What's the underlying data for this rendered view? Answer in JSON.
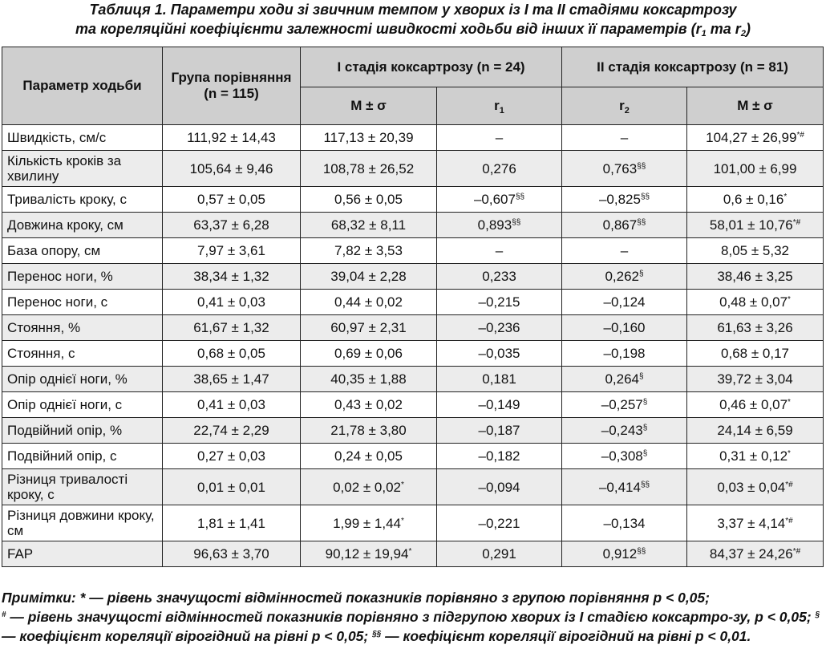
{
  "caption": {
    "line1": "Таблиця 1. Параметри ходи зі звичним темпом у хворих із I та II стадіями коксартрозу",
    "line2_prefix": "та кореляційні коефіцієнти залежності швидкості ходьби від інших її параметрів (r",
    "line2_sub1": "1",
    "line2_mid": " та r",
    "line2_sub2": "2",
    "line2_suffix": ")"
  },
  "table": {
    "head": {
      "param": "Параметр ходьби",
      "comparison": "Група порівняння (n = 115)",
      "stage1": "I стадія коксартрозу (n = 24)",
      "stage2": "II стадія коксартрозу (n = 81)",
      "mean_sd": "M ± σ",
      "r": "r",
      "r1_sub": "1",
      "r2_sub": "2"
    },
    "rows": [
      {
        "param": "Швидкість, см/с",
        "comp": "111,92 ± 14,43",
        "s1": "117,13 ± 20,39",
        "r1": "–",
        "r1m": "",
        "r2": "–",
        "r2m": "",
        "s2": "104,27 ± 26,99",
        "s2m": "*#"
      },
      {
        "param": "Кількість кроків за хвилину",
        "comp": "105,64 ± 9,46",
        "s1": "108,78 ± 26,52",
        "r1": "0,276",
        "r1m": "",
        "r2": "0,763",
        "r2m": "§§",
        "s2": "101,00 ± 6,99",
        "s2m": ""
      },
      {
        "param": "Тривалість кроку, с",
        "comp": "0,57 ± 0,05",
        "s1": "0,56 ± 0,05",
        "r1": "–0,607",
        "r1m": "§§",
        "r2": "–0,825",
        "r2m": "§§",
        "s2": "0,6 ± 0,16",
        "s2m": "*"
      },
      {
        "param": "Довжина кроку, см",
        "comp": "63,37 ± 6,28",
        "s1": "68,32 ± 8,11",
        "r1": "0,893",
        "r1m": "§§",
        "r2": "0,867",
        "r2m": "§§",
        "s2": "58,01 ± 10,76",
        "s2m": "*#"
      },
      {
        "param": "База опору, см",
        "comp": "7,97 ± 3,61",
        "s1": "7,82 ± 3,53",
        "r1": "–",
        "r1m": "",
        "r2": "–",
        "r2m": "",
        "s2": "8,05 ± 5,32",
        "s2m": ""
      },
      {
        "param": "Перенос ноги, %",
        "comp": "38,34 ± 1,32",
        "s1": "39,04 ± 2,28",
        "r1": "0,233",
        "r1m": "",
        "r2": "0,262",
        "r2m": "§",
        "s2": "38,46 ± 3,25",
        "s2m": ""
      },
      {
        "param": "Перенос ноги, с",
        "comp": "0,41 ± 0,03",
        "s1": "0,44 ± 0,02",
        "r1": "–0,215",
        "r1m": "",
        "r2": "–0,124",
        "r2m": "",
        "s2": "0,48 ± 0,07",
        "s2m": "*"
      },
      {
        "param": "Стояння, %",
        "comp": "61,67 ± 1,32",
        "s1": "60,97 ± 2,31",
        "r1": "–0,236",
        "r1m": "",
        "r2": "–0,160",
        "r2m": "",
        "s2": "61,63 ± 3,26",
        "s2m": ""
      },
      {
        "param": "Стояння, с",
        "comp": "0,68 ± 0,05",
        "s1": "0,69 ± 0,06",
        "r1": "–0,035",
        "r1m": "",
        "r2": "–0,198",
        "r2m": "",
        "s2": "0,68 ± 0,17",
        "s2m": ""
      },
      {
        "param": "Опір однієї ноги, %",
        "comp": "38,65 ± 1,47",
        "s1": "40,35 ± 1,88",
        "r1": "0,181",
        "r1m": "",
        "r2": "0,264",
        "r2m": "§",
        "s2": "39,72 ± 3,04",
        "s2m": ""
      },
      {
        "param": "Опір однієї ноги, с",
        "comp": "0,41 ± 0,03",
        "s1": "0,43 ± 0,02",
        "r1": "–0,149",
        "r1m": "",
        "r2": "–0,257",
        "r2m": "§",
        "s2": "0,46 ± 0,07",
        "s2m": "*"
      },
      {
        "param": "Подвійний опір, %",
        "comp": "22,74 ± 2,29",
        "s1": "21,78 ± 3,80",
        "r1": "–0,187",
        "r1m": "",
        "r2": "–0,243",
        "r2m": "§",
        "s2": "24,14 ± 6,59",
        "s2m": ""
      },
      {
        "param": "Подвійний опір, с",
        "comp": "0,27 ± 0,03",
        "s1": "0,24 ± 0,05",
        "r1": "–0,182",
        "r1m": "",
        "r2": "–0,308",
        "r2m": "§",
        "s2": "0,31 ± 0,12",
        "s2m": "*"
      },
      {
        "param": "Різниця тривалості кроку, с",
        "comp": "0,01 ± 0,01",
        "s1": "0,02 ± 0,02",
        "s1m": "*",
        "r1": "–0,094",
        "r1m": "",
        "r2": "–0,414",
        "r2m": "§§",
        "s2": "0,03 ± 0,04",
        "s2m": "*#"
      },
      {
        "param": "Різниця довжини кроку, см",
        "comp": "1,81 ± 1,41",
        "s1": "1,99 ± 1,44",
        "s1m": "*",
        "r1": "–0,221",
        "r1m": "",
        "r2": "–0,134",
        "r2m": "",
        "s2": "3,37 ± 4,14",
        "s2m": "*#"
      },
      {
        "param": "FAP",
        "comp": "96,63 ± 3,70",
        "s1": "90,12 ± 19,94",
        "s1m": "*",
        "r1": "0,291",
        "r1m": "",
        "r2": "0,912",
        "r2m": "§§",
        "s2": "84,37 ± 24,26",
        "s2m": "*#"
      }
    ]
  },
  "notes": {
    "label": "Примітки:",
    "p1": " * — рівень значущості відмінностей показників порівняно з групою порівняння p < 0,05;",
    "sym2": "#",
    "p2": " — рівень значущості відмінностей показників порівняно з підгрупою хворих із I стадією коксартро-зу, p < 0,05; ",
    "sym3": "§",
    "p3": " — коефіцієнт кореляції вірогідний на рівні p < 0,05; ",
    "sym4": "§§",
    "p4": " — коефіцієнт кореляції вірогідний на рівні p < 0,01."
  }
}
